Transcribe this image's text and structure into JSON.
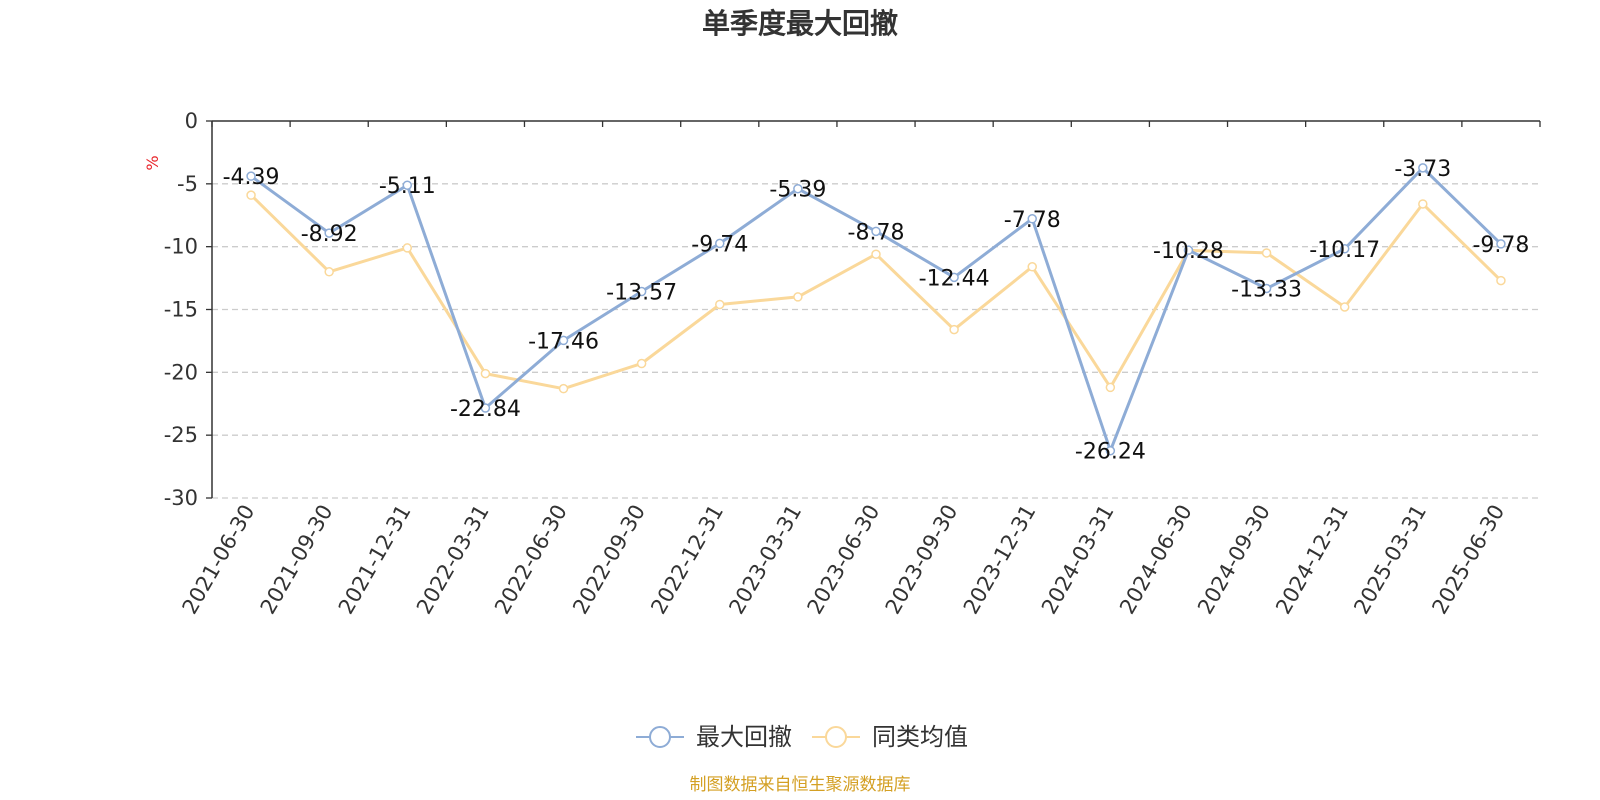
{
  "chart_data": {
    "type": "line",
    "title": "单季度最大回撤",
    "unit_label": "%",
    "x": [
      "2021-06-30",
      "2021-09-30",
      "2021-12-31",
      "2022-03-31",
      "2022-06-30",
      "2022-09-30",
      "2022-12-31",
      "2023-03-31",
      "2023-06-30",
      "2023-09-30",
      "2023-12-31",
      "2024-03-31",
      "2024-06-30",
      "2024-09-30",
      "2024-12-31",
      "2025-03-31",
      "2025-06-30"
    ],
    "ylim": [
      -30,
      0
    ],
    "yticks": [
      0,
      -5,
      -10,
      -15,
      -20,
      -25,
      -30
    ],
    "grid": true,
    "legend_position": "bottom-center",
    "series": [
      {
        "name": "最大回撤",
        "color": "#8eacd6",
        "show_labels": true,
        "values": [
          -4.39,
          -8.92,
          -5.11,
          -22.84,
          -17.46,
          -13.57,
          -9.74,
          -5.39,
          -8.78,
          -12.44,
          -7.78,
          -26.24,
          -10.28,
          -13.33,
          -10.17,
          -3.73,
          -9.78
        ]
      },
      {
        "name": "同类均值",
        "color": "#fad89a",
        "show_labels": false,
        "values": [
          -5.9,
          -12.0,
          -10.1,
          -20.1,
          -21.3,
          -19.3,
          -14.6,
          -14.0,
          -10.6,
          -16.6,
          -11.6,
          -21.2,
          -10.3,
          -10.5,
          -14.8,
          -6.6,
          -12.7
        ]
      }
    ]
  },
  "colors": {
    "unit": "#e8242a",
    "source": "#d4a024",
    "grid": "#cccccc",
    "axis": "#333333"
  },
  "source_note": "制图数据来自恒生聚源数据库"
}
